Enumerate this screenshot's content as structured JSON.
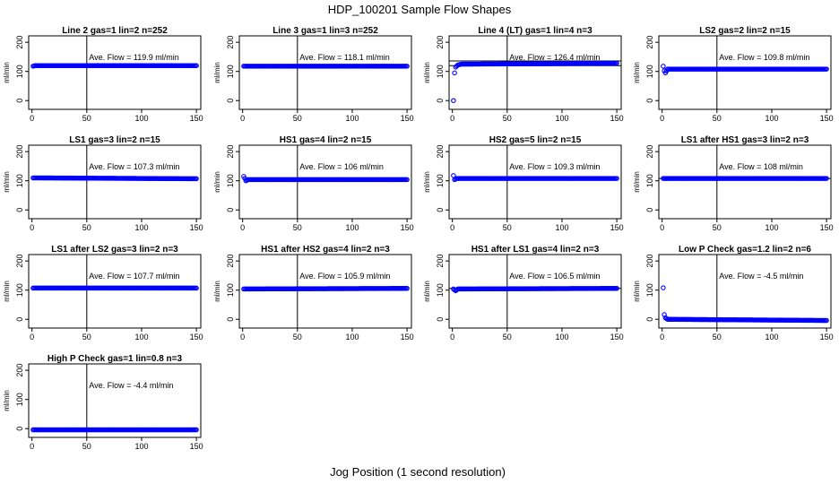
{
  "figure": {
    "title": "HDP_100201  Sample Flow Shapes",
    "xlabel": "Jog Position (1 second resolution)"
  },
  "colors": {
    "points": "#0000ff",
    "axes": "#000000"
  },
  "chart_data": [
    {
      "type": "scatter",
      "title": "Line 2 gas=1 lin=2 n=252",
      "ylabel": "ml/min",
      "xlim": [
        0,
        150
      ],
      "ylim": [
        0,
        200
      ],
      "xticks": [
        "0",
        "50",
        "100",
        "150"
      ],
      "yticks": [
        "0",
        "100",
        "200"
      ],
      "vline": 50,
      "hlines": [],
      "annotation": "Ave. Flow =  119.9  ml/min",
      "series": [
        {
          "points": [
            [
              1,
              118
            ],
            [
              2,
              119
            ],
            [
              3,
              120
            ],
            [
              150,
              120
            ]
          ]
        }
      ]
    },
    {
      "type": "scatter",
      "title": "Line 3 gas=1 lin=3 n=252",
      "ylabel": "ml/min",
      "xlim": [
        0,
        150
      ],
      "ylim": [
        0,
        200
      ],
      "xticks": [
        "0",
        "50",
        "100",
        "150"
      ],
      "yticks": [
        "0",
        "100",
        "200"
      ],
      "vline": 50,
      "hlines": [],
      "annotation": "Ave. Flow =  118.1  ml/min",
      "series": [
        {
          "points": [
            [
              1,
              118
            ],
            [
              150,
              118
            ]
          ]
        }
      ]
    },
    {
      "type": "scatter",
      "title": "Line 4 (LT) gas=1 lin=4 n=3",
      "ylabel": "ml/min",
      "xlim": [
        0,
        150
      ],
      "ylim": [
        0,
        200
      ],
      "xticks": [
        "0",
        "50",
        "100",
        "150"
      ],
      "yticks": [
        "0",
        "100",
        "200"
      ],
      "vline": 50,
      "hlines": [
        120,
        136
      ],
      "annotation": "Ave. Flow =  126.4  ml/min",
      "series": [
        {
          "points": [
            [
              1,
              0
            ],
            [
              2,
              95
            ],
            [
              3,
              115
            ],
            [
              5,
              122
            ],
            [
              8,
              125
            ],
            [
              150,
              128
            ]
          ]
        }
      ]
    },
    {
      "type": "scatter",
      "title": "LS2 gas=2 lin=2 n=15",
      "ylabel": "ml/min",
      "xlim": [
        0,
        150
      ],
      "ylim": [
        0,
        200
      ],
      "xticks": [
        "0",
        "50",
        "100",
        "150"
      ],
      "yticks": [
        "0",
        "100",
        "200"
      ],
      "vline": 50,
      "hlines": [],
      "annotation": "Ave. Flow =  109.8  ml/min",
      "series": [
        {
          "points": [
            [
              1,
              118
            ],
            [
              2,
              102
            ],
            [
              3,
              95
            ],
            [
              5,
              108
            ],
            [
              150,
              108
            ]
          ]
        }
      ]
    },
    {
      "type": "scatter",
      "title": "LS1 gas=3 lin=2 n=15",
      "ylabel": "ml/min",
      "xlim": [
        0,
        150
      ],
      "ylim": [
        0,
        200
      ],
      "xticks": [
        "0",
        "50",
        "100",
        "150"
      ],
      "yticks": [
        "0",
        "100",
        "200"
      ],
      "vline": 50,
      "hlines": [],
      "annotation": "Ave. Flow =  107.3  ml/min",
      "series": [
        {
          "points": [
            [
              1,
              110
            ],
            [
              150,
              107
            ]
          ]
        }
      ]
    },
    {
      "type": "scatter",
      "title": "HS1 gas=4 lin=2 n=15",
      "ylabel": "ml/min",
      "xlim": [
        0,
        150
      ],
      "ylim": [
        0,
        200
      ],
      "xticks": [
        "0",
        "50",
        "100",
        "150"
      ],
      "yticks": [
        "0",
        "100",
        "200"
      ],
      "vline": 50,
      "hlines": [],
      "annotation": "Ave. Flow =  106  ml/min",
      "series": [
        {
          "points": [
            [
              1,
              115
            ],
            [
              2,
              108
            ],
            [
              3,
              100
            ],
            [
              5,
              104
            ],
            [
              150,
              104
            ]
          ]
        }
      ]
    },
    {
      "type": "scatter",
      "title": "HS2 gas=5 lin=2 n=15",
      "ylabel": "ml/min",
      "xlim": [
        0,
        150
      ],
      "ylim": [
        0,
        200
      ],
      "xticks": [
        "0",
        "50",
        "100",
        "150"
      ],
      "yticks": [
        "0",
        "100",
        "200"
      ],
      "vline": 50,
      "hlines": [],
      "annotation": "Ave. Flow =  109.3  ml/min",
      "series": [
        {
          "points": [
            [
              1,
              118
            ],
            [
              2,
              104
            ],
            [
              4,
              108
            ],
            [
              150,
              108
            ]
          ]
        }
      ]
    },
    {
      "type": "scatter",
      "title": "LS1 after HS1 gas=3 lin=2 n=3",
      "ylabel": "ml/min",
      "xlim": [
        0,
        150
      ],
      "ylim": [
        0,
        200
      ],
      "xticks": [
        "0",
        "50",
        "100",
        "150"
      ],
      "yticks": [
        "0",
        "100",
        "200"
      ],
      "vline": 50,
      "hlines": [
        108
      ],
      "annotation": "Ave. Flow =  108  ml/min",
      "series": [
        {
          "points": [
            [
              1,
              108
            ],
            [
              150,
              108
            ]
          ]
        }
      ]
    },
    {
      "type": "scatter",
      "title": "LS1 after LS2 gas=3 lin=2 n=3",
      "ylabel": "ml/min",
      "xlim": [
        0,
        150
      ],
      "ylim": [
        0,
        200
      ],
      "xticks": [
        "0",
        "50",
        "100",
        "150"
      ],
      "yticks": [
        "0",
        "100",
        "200"
      ],
      "vline": 50,
      "hlines": [],
      "annotation": "Ave. Flow =  107.7  ml/min",
      "series": [
        {
          "points": [
            [
              1,
              107
            ],
            [
              150,
              107
            ]
          ]
        }
      ]
    },
    {
      "type": "scatter",
      "title": "HS1 after HS2 gas=4 lin=2 n=3",
      "ylabel": "ml/min",
      "xlim": [
        0,
        150
      ],
      "ylim": [
        0,
        200
      ],
      "xticks": [
        "0",
        "50",
        "100",
        "150"
      ],
      "yticks": [
        "0",
        "100",
        "200"
      ],
      "vline": 50,
      "hlines": [],
      "annotation": "Ave. Flow =  105.9  ml/min",
      "series": [
        {
          "points": [
            [
              1,
              104
            ],
            [
              150,
              106
            ]
          ]
        }
      ]
    },
    {
      "type": "scatter",
      "title": "HS1 after LS1 gas=4 lin=2 n=3",
      "ylabel": "ml/min",
      "xlim": [
        0,
        150
      ],
      "ylim": [
        0,
        200
      ],
      "xticks": [
        "0",
        "50",
        "100",
        "150"
      ],
      "yticks": [
        "0",
        "100",
        "200"
      ],
      "vline": 50,
      "hlines": [
        106
      ],
      "annotation": "Ave. Flow =  106.5  ml/min",
      "series": [
        {
          "points": [
            [
              1,
              104
            ],
            [
              3,
              98
            ],
            [
              5,
              104
            ],
            [
              150,
              106
            ]
          ]
        }
      ]
    },
    {
      "type": "scatter",
      "title": "Low P Check gas=1.2 lin=2 n=6",
      "ylabel": "ml/min",
      "xlim": [
        0,
        150
      ],
      "ylim": [
        0,
        200
      ],
      "xticks": [
        "0",
        "50",
        "100",
        "150"
      ],
      "yticks": [
        "0",
        "100",
        "200"
      ],
      "vline": 50,
      "hlines": [],
      "annotation": "Ave. Flow =  -4.5  ml/min",
      "series": [
        {
          "points": [
            [
              1,
              108
            ],
            [
              2,
              16
            ],
            [
              3,
              5
            ],
            [
              5,
              0
            ],
            [
              150,
              -4
            ]
          ]
        }
      ]
    },
    {
      "type": "scatter",
      "title": "High P Check gas=1 lin=0.8 n=3",
      "ylabel": "ml/min",
      "xlim": [
        0,
        150
      ],
      "ylim": [
        0,
        200
      ],
      "xticks": [
        "0",
        "50",
        "100",
        "150"
      ],
      "yticks": [
        "0",
        "100",
        "200"
      ],
      "vline": 50,
      "hlines": [],
      "annotation": "Ave. Flow =  -4.4  ml/min",
      "series": [
        {
          "points": [
            [
              1,
              -4
            ],
            [
              150,
              -4
            ]
          ]
        }
      ]
    }
  ]
}
